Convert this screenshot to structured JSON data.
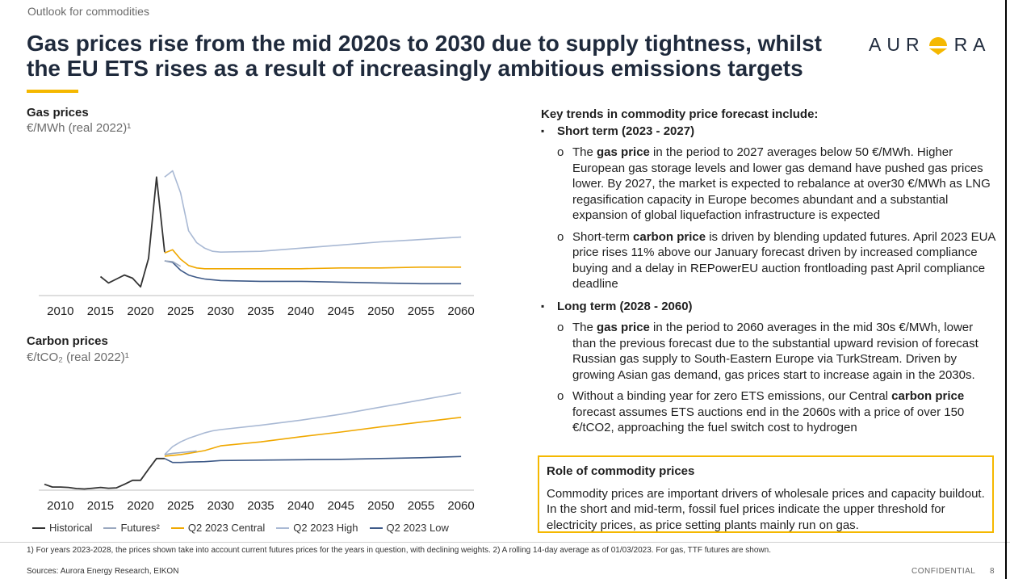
{
  "header": {
    "section_label": "Outlook for commodities",
    "title": "Gas prices rise from the mid 2020s to 2030 due to supply tightness, whilst the EU ETS rises as a result of increasingly ambitious emissions targets",
    "logo_text_left": "AUR",
    "logo_text_right": "RA"
  },
  "colors": {
    "historical": "#333333",
    "futures": "#9aa8bf",
    "central": "#f0a800",
    "high": "#a9b9d4",
    "low": "#3e5a88",
    "accent": "#f5b800",
    "title": "#1f2a3c"
  },
  "legend": {
    "historical": "Historical",
    "futures": "Futures²",
    "central": "Q2 2023 Central",
    "high": "Q2 2023 High",
    "low": "Q2 2023 Low"
  },
  "chart_data": [
    {
      "type": "line",
      "title": "Gas prices",
      "unit": "€/MWh (real 2022)¹",
      "x_ticks": [
        2010,
        2015,
        2020,
        2025,
        2030,
        2035,
        2040,
        2045,
        2050,
        2055,
        2060
      ],
      "xlim": [
        2008,
        2061
      ],
      "ylim": [
        0,
        180
      ],
      "grid": false,
      "legend_placement": "bottom",
      "series": [
        {
          "name": "Historical",
          "key": "historical",
          "points": [
            [
              2015,
              24
            ],
            [
              2016,
              16
            ],
            [
              2017,
              21
            ],
            [
              2018,
              26
            ],
            [
              2019,
              22
            ],
            [
              2020,
              11
            ],
            [
              2021,
              47
            ],
            [
              2022,
              150
            ],
            [
              2023,
              55
            ]
          ]
        },
        {
          "name": "Futures²",
          "key": "futures",
          "points": [
            [
              2023,
              44
            ],
            [
              2024,
              43
            ],
            [
              2025,
              37
            ]
          ]
        },
        {
          "name": "Q2 2023 Central",
          "key": "central",
          "points": [
            [
              2023,
              54
            ],
            [
              2024,
              58
            ],
            [
              2025,
              46
            ],
            [
              2026,
              38
            ],
            [
              2027,
              35
            ],
            [
              2028,
              34
            ],
            [
              2030,
              34
            ],
            [
              2035,
              34
            ],
            [
              2040,
              34
            ],
            [
              2045,
              35
            ],
            [
              2050,
              35
            ],
            [
              2055,
              36
            ],
            [
              2060,
              36
            ]
          ]
        },
        {
          "name": "Q2 2023 High",
          "key": "high",
          "points": [
            [
              2023,
              150
            ],
            [
              2024,
              158
            ],
            [
              2025,
              130
            ],
            [
              2026,
              82
            ],
            [
              2027,
              67
            ],
            [
              2028,
              60
            ],
            [
              2029,
              56
            ],
            [
              2030,
              55
            ],
            [
              2035,
              56
            ],
            [
              2040,
              60
            ],
            [
              2045,
              64
            ],
            [
              2050,
              68
            ],
            [
              2055,
              71
            ],
            [
              2060,
              74
            ]
          ]
        },
        {
          "name": "Q2 2023 Low",
          "key": "low",
          "points": [
            [
              2023,
              44
            ],
            [
              2024,
              42
            ],
            [
              2025,
              32
            ],
            [
              2026,
              26
            ],
            [
              2027,
              23
            ],
            [
              2028,
              21
            ],
            [
              2030,
              19
            ],
            [
              2035,
              18
            ],
            [
              2040,
              18
            ],
            [
              2045,
              17
            ],
            [
              2050,
              16
            ],
            [
              2055,
              15
            ],
            [
              2060,
              15
            ]
          ]
        }
      ]
    },
    {
      "type": "line",
      "title": "Carbon prices",
      "unit": "€/tCO₂ (real 2022)¹",
      "x_ticks": [
        2010,
        2015,
        2020,
        2025,
        2030,
        2035,
        2040,
        2045,
        2050,
        2055,
        2060
      ],
      "xlim": [
        2008,
        2061
      ],
      "ylim": [
        0,
        300
      ],
      "grid": false,
      "legend_placement": "bottom",
      "series": [
        {
          "name": "Historical",
          "key": "historical",
          "points": [
            [
              2008,
              15
            ],
            [
              2009,
              8
            ],
            [
              2010,
              8
            ],
            [
              2011,
              7
            ],
            [
              2012,
              4
            ],
            [
              2013,
              3
            ],
            [
              2014,
              5
            ],
            [
              2015,
              7
            ],
            [
              2016,
              5
            ],
            [
              2017,
              6
            ],
            [
              2018,
              15
            ],
            [
              2019,
              25
            ],
            [
              2020,
              25
            ],
            [
              2021,
              53
            ],
            [
              2022,
              80
            ],
            [
              2023,
              80
            ]
          ]
        },
        {
          "name": "Futures²",
          "key": "futures",
          "points": [
            [
              2023,
              90
            ],
            [
              2024,
              93
            ],
            [
              2025,
              95
            ],
            [
              2026,
              97
            ],
            [
              2027,
              99
            ]
          ]
        },
        {
          "name": "Q2 2023 Central",
          "key": "central",
          "points": [
            [
              2023,
              86
            ],
            [
              2024,
              88
            ],
            [
              2025,
              90
            ],
            [
              2026,
              93
            ],
            [
              2028,
              100
            ],
            [
              2030,
              112
            ],
            [
              2035,
              122
            ],
            [
              2040,
              135
            ],
            [
              2045,
              147
            ],
            [
              2050,
              160
            ],
            [
              2055,
              172
            ],
            [
              2060,
              184
            ]
          ]
        },
        {
          "name": "Q2 2023 High",
          "key": "high",
          "points": [
            [
              2023,
              90
            ],
            [
              2024,
              110
            ],
            [
              2025,
              122
            ],
            [
              2026,
              131
            ],
            [
              2027,
              138
            ],
            [
              2028,
              145
            ],
            [
              2029,
              150
            ],
            [
              2030,
              153
            ],
            [
              2035,
              164
            ],
            [
              2040,
              177
            ],
            [
              2045,
              192
            ],
            [
              2050,
              210
            ],
            [
              2055,
              228
            ],
            [
              2060,
              246
            ]
          ]
        },
        {
          "name": "Q2 2023 Low",
          "key": "low",
          "points": [
            [
              2023,
              80
            ],
            [
              2024,
              70
            ],
            [
              2025,
              70
            ],
            [
              2026,
              71
            ],
            [
              2028,
              72
            ],
            [
              2030,
              75
            ],
            [
              2035,
              76
            ],
            [
              2040,
              77
            ],
            [
              2045,
              78
            ],
            [
              2050,
              80
            ],
            [
              2055,
              82
            ],
            [
              2060,
              85
            ]
          ]
        }
      ]
    }
  ],
  "trends": {
    "heading": "Key trends in commodity price forecast include:",
    "short_term": {
      "heading": "Short term (2023 - 2027)",
      "b1_pre": "The ",
      "b1_bold": "gas price",
      "b1_post": " in the period to 2027 averages below 50 €/MWh. Higher European gas storage levels and lower gas demand have pushed gas prices lower. By 2027, the market is expected to rebalance at over30 €/MWh as LNG regasification capacity in Europe becomes abundant and a substantial expansion of global liquefaction infrastructure is expected",
      "b2_pre": "Short-term ",
      "b2_bold": "carbon price",
      "b2_post": " is driven by blending updated futures. April 2023 EUA price rises 11% above our January forecast driven by increased compliance buying and a delay in REPowerEU auction frontloading past April compliance deadline"
    },
    "long_term": {
      "heading": "Long term (2028 - 2060)",
      "b1_pre": "The ",
      "b1_bold": "gas price",
      "b1_post": " in the period to 2060 averages in the mid 30s €/MWh, lower than the previous forecast due to the substantial upward revision of forecast Russian gas supply to South-Eastern Europe via TurkStream. Driven by growing Asian gas demand, gas prices start to increase again in the 2030s.",
      "b2_pre": "Without a binding year for zero ETS emissions, our Central ",
      "b2_bold": "carbon price",
      "b2_post": " forecast assumes ETS auctions end in the 2060s with a price of over 150 €/tCO2, approaching the fuel switch cost to hydrogen"
    },
    "bullet_glyph": "o"
  },
  "role": {
    "title": "Role of commodity prices",
    "body": "Commodity prices are important drivers of wholesale prices and capacity buildout. In the short and mid-term, fossil fuel prices indicate the upper threshold for electricity prices, as price setting plants mainly run on gas."
  },
  "footer": {
    "footnote": "1) For years 2023-2028, the prices shown take into account current futures prices for the years in question, with declining weights. 2) A rolling 14-day average as of 01/03/2023. For gas, TTF futures are shown.",
    "sources": "Sources: Aurora Energy Research, EIKON",
    "confidential": "CONFIDENTIAL",
    "page_number": "8"
  }
}
